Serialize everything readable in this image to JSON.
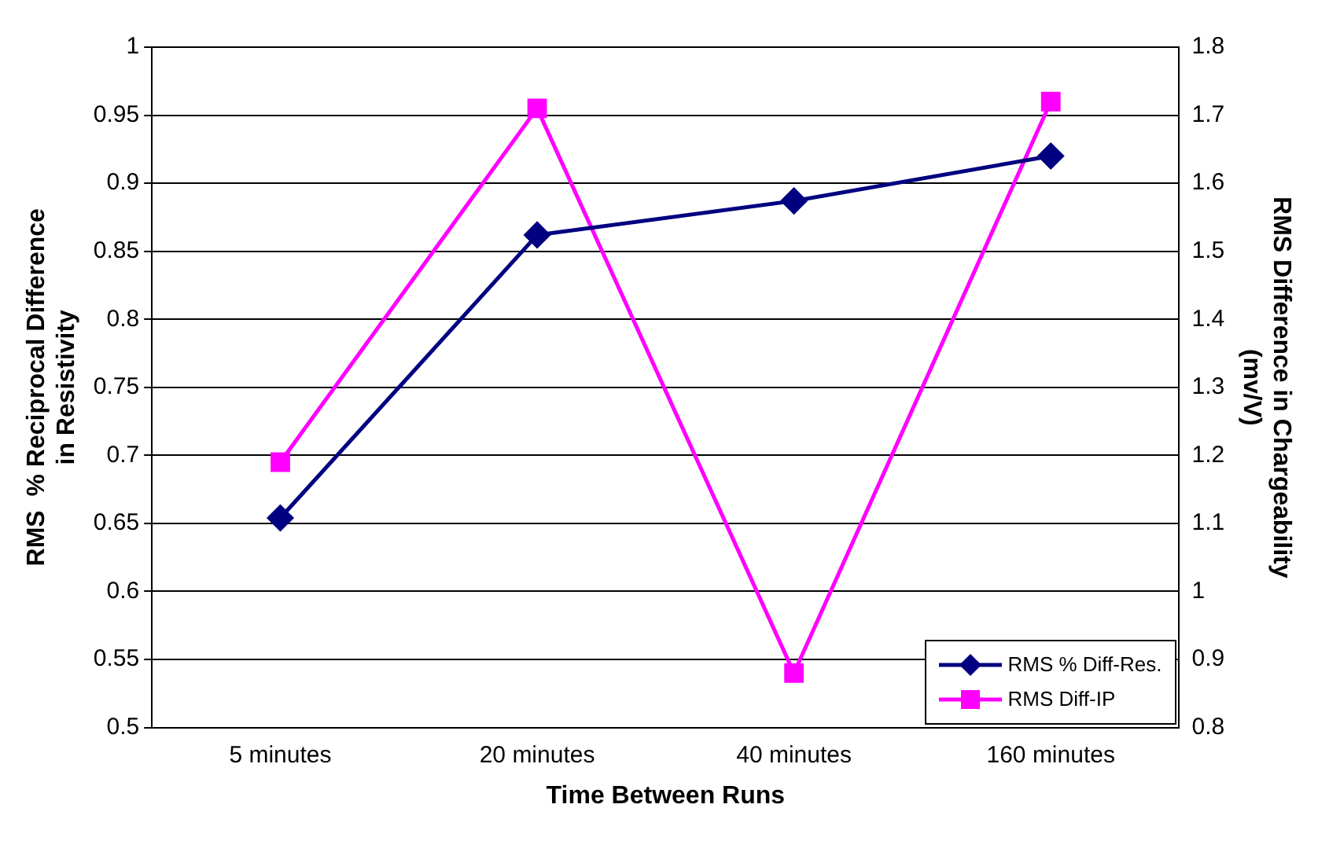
{
  "chart_data": {
    "type": "line",
    "xlabel": "Time Between Runs",
    "ylabel": "RMS  % Reciprocal Difference in Resistivity",
    "y2label": "RMS Difference in Chargeability (mv/V)",
    "categories": [
      "5 minutes",
      "20 minutes",
      "40 minutes",
      "160 minutes"
    ],
    "series": [
      {
        "name": "RMS % Diff-Res.",
        "color": "#000080",
        "marker": "diamond",
        "values": [
          0.654,
          0.862,
          0.887,
          0.92
        ]
      },
      {
        "name": "RMS Diff-IP",
        "color": "#ff00ff",
        "marker": "square",
        "axis": "y2",
        "values": [
          1.19,
          1.71,
          0.88,
          1.72
        ]
      }
    ],
    "ylim": [
      0.5,
      1
    ],
    "yticks": [
      0.5,
      0.55,
      0.6,
      0.65,
      0.7,
      0.75,
      0.8,
      0.85,
      0.9,
      0.95,
      1
    ],
    "y2lim": [
      0.8,
      1.8
    ],
    "y2ticks": [
      0.8,
      0.9,
      1,
      1.1,
      1.2,
      1.3,
      1.4,
      1.5,
      1.6,
      1.7,
      1.8
    ],
    "grid": "y",
    "legend": "bottom right"
  }
}
